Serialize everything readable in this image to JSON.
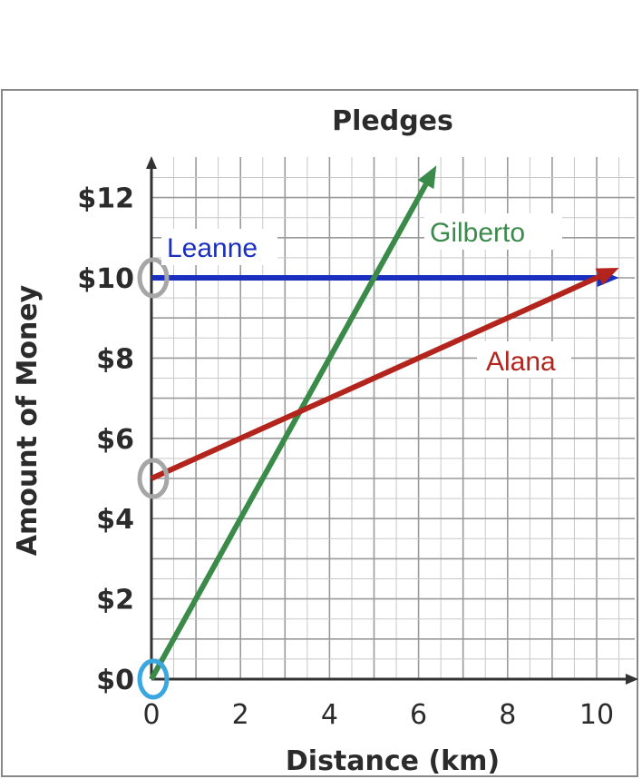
{
  "chart_data": {
    "type": "line",
    "title": "Pledges",
    "xlabel": "Distance (km)",
    "ylabel": "Amount of Money",
    "xlim": [
      0,
      10.5
    ],
    "ylim": [
      0,
      13
    ],
    "x_ticks": [
      0,
      2,
      4,
      6,
      8,
      10
    ],
    "x_tick_labels": [
      "0",
      "2",
      "4",
      "6",
      "8",
      "10"
    ],
    "y_ticks": [
      0,
      2,
      4,
      6,
      8,
      10,
      12
    ],
    "y_tick_labels": [
      "$0",
      "$2",
      "$4",
      "$6",
      "$8",
      "$10",
      "$12"
    ],
    "grid": true,
    "series": [
      {
        "name": "Leanne",
        "color": "#1a2fbf",
        "x": [
          0,
          10.5
        ],
        "y": [
          10,
          10
        ]
      },
      {
        "name": "Gilberto",
        "color": "#3a8a4a",
        "x": [
          0,
          6.4
        ],
        "y": [
          0,
          12.8
        ]
      },
      {
        "name": "Alana",
        "color": "#b3241c",
        "x": [
          0,
          10.5
        ],
        "y": [
          5,
          10.25
        ]
      }
    ],
    "highlighted_points": [
      {
        "x": 0,
        "y": 10,
        "color": "#a6a6a6"
      },
      {
        "x": 0,
        "y": 5,
        "color": "#a6a6a6"
      },
      {
        "x": 0,
        "y": 0,
        "color": "#3ba7e0"
      }
    ]
  }
}
